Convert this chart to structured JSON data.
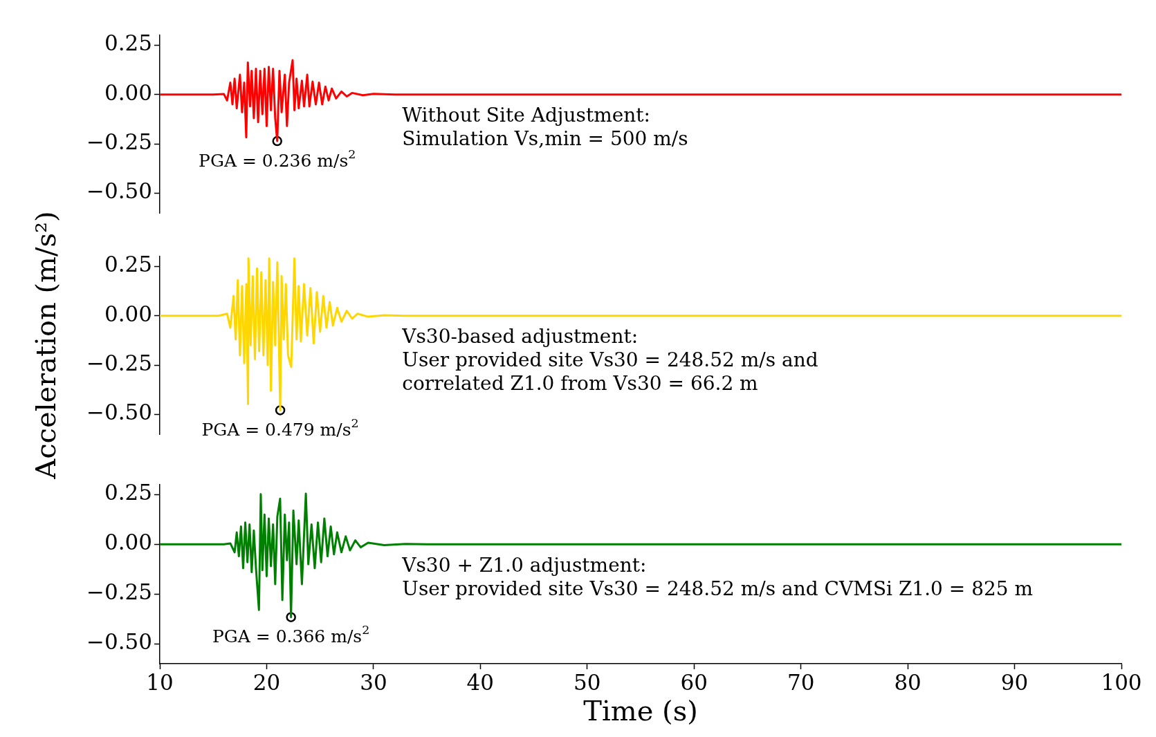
{
  "chart_data": [
    {
      "type": "line",
      "xlim": [
        10,
        100
      ],
      "xticks": [
        10,
        20,
        30,
        40,
        50,
        60,
        70,
        80,
        90,
        100
      ],
      "ylim": [
        -0.6,
        0.3
      ],
      "yticks": [
        {
          "value": -0.5,
          "label": "−0.50"
        },
        {
          "value": -0.25,
          "label": "−0.25"
        },
        {
          "value": 0,
          "label": "0.00"
        },
        {
          "value": 0.25,
          "label": "0.25"
        }
      ],
      "tick_labels": "y",
      "series": [
        {
          "color": "#ff0000",
          "x": [
            10,
            15,
            16,
            16.3,
            16.6,
            16.8,
            17,
            17.2,
            17.5,
            17.7,
            17.9,
            18.09,
            18.24,
            18.45,
            18.6,
            18.8,
            19,
            19.2,
            19.4,
            19.6,
            19.8,
            20,
            20.2,
            20.4,
            20.6,
            20.8,
            20.99,
            21.2,
            21.4,
            21.7,
            21.9,
            22.1,
            22.43,
            22.6,
            22.8,
            23,
            23.3,
            23.5,
            23.8,
            24,
            24.3,
            24.6,
            24.9,
            25.2,
            25.5,
            25.8,
            26.1,
            26.5,
            27,
            27.5,
            28,
            29,
            30,
            32,
            100
          ],
          "values": [
            0,
            0,
            0.002,
            -0.03,
            0.06,
            -0.05,
            0.08,
            -0.07,
            0.1,
            -0.09,
            0.06,
            -0.217,
            0.162,
            -0.06,
            0.12,
            -0.12,
            0.13,
            -0.14,
            0.12,
            -0.1,
            0.13,
            -0.16,
            0.14,
            -0.08,
            0.13,
            -0.12,
            -0.236,
            0.12,
            -0.09,
            0.1,
            -0.16,
            0.06,
            0.174,
            -0.08,
            0.08,
            -0.07,
            0.07,
            -0.06,
            0.1,
            -0.06,
            0.065,
            -0.05,
            0.06,
            -0.05,
            0.04,
            -0.03,
            0.03,
            -0.02,
            0.015,
            -0.01,
            0.008,
            -0.004,
            0.003,
            0,
            0
          ]
        },
        {
          "type": "scatter",
          "marker": "circle",
          "color": "#000000",
          "x": [
            20.99
          ],
          "values": [
            -0.236
          ]
        }
      ],
      "annotations": [
        {
          "text": "PGA = 0.236 m/s$^{2}$",
          "x": 20.99,
          "y": -0.236
        },
        "Without Site Adjustment:",
        "Simulation Vs,min = 500 m/s"
      ]
    },
    {
      "type": "line",
      "ylabel": "Acceleration (m/s²)",
      "xlim": [
        10,
        100
      ],
      "xticks": [
        10,
        20,
        30,
        40,
        50,
        60,
        70,
        80,
        90,
        100
      ],
      "ylim": [
        -0.6,
        0.3
      ],
      "yticks": [
        {
          "value": -0.5,
          "label": "−0.50"
        },
        {
          "value": -0.25,
          "label": "−0.25"
        },
        {
          "value": 0,
          "label": "0.00"
        },
        {
          "value": 0.25,
          "label": "0.25"
        }
      ],
      "tick_labels": "y",
      "series": [
        {
          "color": "#ffd700",
          "x": [
            10,
            15.5,
            16.3,
            16.6,
            16.9,
            17.1,
            17.3,
            17.5,
            17.7,
            17.9,
            18.1,
            18.26,
            18.3,
            18.5,
            18.7,
            18.9,
            19.1,
            19.3,
            19.5,
            19.7,
            19.9,
            20.1,
            20.24,
            20.4,
            20.6,
            20.8,
            21,
            21.27,
            21.4,
            21.6,
            21.8,
            22,
            22.3,
            22.6,
            22.8,
            23,
            23.2,
            23.5,
            23.8,
            24.1,
            24.4,
            24.7,
            25,
            25.3,
            25.6,
            25.9,
            26.2,
            26.6,
            27,
            27.5,
            28,
            28.5,
            29.5,
            31,
            33,
            100
          ],
          "values": [
            0,
            0,
            0.01,
            -0.06,
            0.1,
            -0.12,
            0.18,
            -0.2,
            0.15,
            -0.24,
            0.16,
            -0.448,
            0.29,
            -0.15,
            0.2,
            -0.22,
            0.24,
            -0.18,
            0.22,
            -0.2,
            0.18,
            -0.25,
            0.29,
            -0.38,
            0.17,
            -0.15,
            0.27,
            -0.479,
            0.2,
            -0.12,
            0.16,
            -0.2,
            -0.26,
            0.29,
            -0.12,
            0.15,
            -0.13,
            0.16,
            -0.1,
            0.14,
            -0.14,
            0.12,
            -0.08,
            0.1,
            -0.06,
            0.07,
            -0.05,
            0.04,
            -0.03,
            0.025,
            -0.015,
            0.01,
            -0.005,
            0.002,
            0,
            0
          ]
        },
        {
          "type": "scatter",
          "marker": "circle",
          "color": "#000000",
          "x": [
            21.27
          ],
          "values": [
            -0.479
          ]
        }
      ],
      "annotations": [
        {
          "text": "PGA = 0.479 m/s$^{2}$",
          "x": 21.27,
          "y": -0.479
        },
        "Vs30-based adjustment:",
        "User provided site Vs30 = 248.52 m/s and",
        "correlated Z1.0 from Vs30 = 66.2 m"
      ]
    },
    {
      "type": "line",
      "xlabel": "Time (s)",
      "xlim": [
        10,
        100
      ],
      "xticks": [
        10,
        20,
        30,
        40,
        50,
        60,
        70,
        80,
        90,
        100
      ],
      "ylim": [
        -0.6,
        0.3
      ],
      "yticks": [
        {
          "value": -0.5,
          "label": "−0.50"
        },
        {
          "value": -0.25,
          "label": "−0.25"
        },
        {
          "value": 0,
          "label": "0.00"
        },
        {
          "value": 0.25,
          "label": "0.25"
        }
      ],
      "series": [
        {
          "color": "#008000",
          "x": [
            10,
            16,
            16.6,
            17,
            17.2,
            17.4,
            17.6,
            17.8,
            18,
            18.2,
            18.4,
            18.6,
            18.8,
            19,
            19.28,
            19.45,
            19.6,
            19.8,
            20,
            20.2,
            20.4,
            20.6,
            20.8,
            21,
            21.26,
            21.47,
            21.7,
            21.9,
            22.1,
            22.28,
            22.5,
            22.8,
            23,
            23.3,
            23.67,
            23.9,
            24.2,
            24.5,
            24.8,
            25.1,
            25.4,
            25.7,
            26,
            26.3,
            26.6,
            27,
            27.4,
            27.8,
            28.3,
            28.8,
            29.5,
            31,
            33,
            35,
            100
          ],
          "values": [
            0,
            0,
            0.005,
            -0.04,
            0.06,
            -0.06,
            0.09,
            -0.12,
            0.11,
            -0.09,
            0.1,
            -0.14,
            0.07,
            -0.12,
            -0.33,
            0.252,
            -0.13,
            0.15,
            -0.16,
            0.13,
            -0.11,
            0.1,
            -0.2,
            0.14,
            0.23,
            -0.28,
            0.15,
            -0.08,
            0.11,
            -0.366,
            0.17,
            -0.1,
            0.12,
            -0.2,
            0.255,
            -0.1,
            0.1,
            -0.12,
            0.11,
            -0.09,
            0.13,
            -0.06,
            0.09,
            -0.05,
            0.06,
            -0.04,
            0.04,
            -0.03,
            0.02,
            -0.015,
            0.008,
            -0.004,
            0.002,
            0,
            0
          ]
        },
        {
          "type": "scatter",
          "marker": "circle",
          "color": "#000000",
          "x": [
            22.28
          ],
          "values": [
            -0.366
          ]
        }
      ],
      "annotations": [
        {
          "text": "PGA = 0.366 m/s$^{2}$",
          "x": 22.28,
          "y": -0.366
        },
        "Vs30 + Z1.0 adjustment:",
        "User provided site Vs30 = 248.52 m/s and CVMSi Z1.0 = 825 m"
      ]
    }
  ]
}
